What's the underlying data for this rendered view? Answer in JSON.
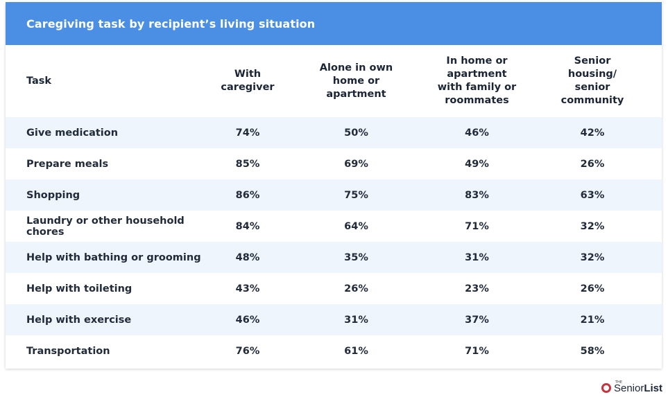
{
  "chart_data": {
    "type": "table",
    "title": "Caregiving task by recipient’s living situation",
    "columns": [
      "Task",
      "With caregiver",
      "Alone in own home or apartment",
      "In home or apartment with family or roommates",
      "Senior housing/ senior community"
    ],
    "rows": [
      {
        "task": "Give medication",
        "values": [
          "74%",
          "50%",
          "46%",
          "42%"
        ]
      },
      {
        "task": "Prepare meals",
        "values": [
          "85%",
          "69%",
          "49%",
          "26%"
        ]
      },
      {
        "task": "Shopping",
        "values": [
          "86%",
          "75%",
          "83%",
          "63%"
        ]
      },
      {
        "task": "Laundry or other household chores",
        "values": [
          "84%",
          "64%",
          "71%",
          "32%"
        ]
      },
      {
        "task": "Help with bathing or grooming",
        "values": [
          "48%",
          "35%",
          "31%",
          "32%"
        ]
      },
      {
        "task": "Help with toileting",
        "values": [
          "43%",
          "26%",
          "23%",
          "26%"
        ]
      },
      {
        "task": "Help with exercise",
        "values": [
          "46%",
          "31%",
          "37%",
          "21%"
        ]
      },
      {
        "task": "Transportation",
        "values": [
          "76%",
          "61%",
          "71%",
          "58%"
        ]
      }
    ]
  },
  "brand": {
    "prefix": "THE",
    "name_a": "Senior",
    "name_b": "List",
    "icon": "senior-list-logo-icon"
  },
  "colors": {
    "header_bg": "#4a8fe3",
    "stripe_bg": "#eef5fd"
  }
}
